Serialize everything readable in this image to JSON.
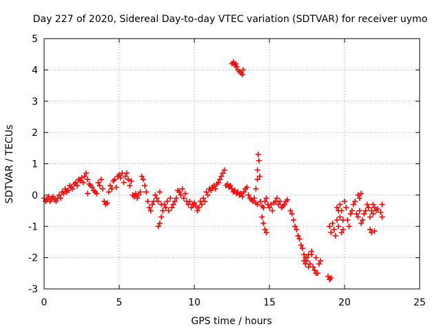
{
  "chart_data": {
    "type": "scatter",
    "title": "Day 227 of 2020, Sidereal Day-to-day VTEC variation (SDTVAR) for receiver uymo",
    "xlabel": "GPS time / hours",
    "ylabel": "SDTVAR / TECUs",
    "xlim": [
      0,
      25
    ],
    "ylim": [
      -3,
      5
    ],
    "xticks": [
      "0",
      "5",
      "10",
      "15",
      "20",
      "25"
    ],
    "yticks": [
      "-3",
      "-2",
      "-1",
      "0",
      "1",
      "2",
      "3",
      "4",
      "5"
    ],
    "grid": true,
    "marker": "+",
    "color": "#ff0000",
    "series": [
      {
        "name": "uymo",
        "points": [
          [
            0.0,
            -0.1
          ],
          [
            0.1,
            -0.2
          ],
          [
            0.2,
            -0.15
          ],
          [
            0.3,
            -0.05
          ],
          [
            0.4,
            -0.2
          ],
          [
            0.5,
            -0.1
          ],
          [
            0.6,
            -0.05
          ],
          [
            0.7,
            -0.15
          ],
          [
            0.8,
            -0.2
          ],
          [
            0.9,
            -0.1
          ],
          [
            1.0,
            0.0
          ],
          [
            1.1,
            -0.1
          ],
          [
            1.2,
            0.1
          ],
          [
            1.3,
            0.05
          ],
          [
            1.4,
            0.2
          ],
          [
            1.5,
            0.1
          ],
          [
            1.6,
            0.15
          ],
          [
            1.7,
            0.3
          ],
          [
            1.8,
            0.25
          ],
          [
            1.9,
            0.2
          ],
          [
            2.0,
            0.35
          ],
          [
            2.1,
            0.4
          ],
          [
            2.2,
            0.3
          ],
          [
            2.3,
            0.5
          ],
          [
            2.4,
            0.45
          ],
          [
            2.5,
            0.55
          ],
          [
            2.6,
            0.4
          ],
          [
            2.7,
            0.6
          ],
          [
            2.8,
            0.7
          ],
          [
            2.9,
            0.5
          ],
          [
            3.0,
            0.35
          ],
          [
            2.9,
            0.05
          ],
          [
            3.1,
            0.3
          ],
          [
            3.2,
            0.25
          ],
          [
            3.3,
            0.15
          ],
          [
            3.4,
            0.1
          ],
          [
            3.5,
            0.05
          ],
          [
            3.6,
            0.4
          ],
          [
            3.7,
            0.3
          ],
          [
            3.8,
            0.5
          ],
          [
            3.9,
            0.2
          ],
          [
            4.0,
            -0.2
          ],
          [
            4.1,
            -0.3
          ],
          [
            4.2,
            -0.25
          ],
          [
            4.3,
            0.1
          ],
          [
            4.4,
            0.3
          ],
          [
            4.5,
            0.2
          ],
          [
            4.6,
            0.45
          ],
          [
            4.7,
            0.5
          ],
          [
            4.8,
            0.25
          ],
          [
            4.9,
            0.6
          ],
          [
            5.0,
            0.65
          ],
          [
            5.1,
            0.55
          ],
          [
            5.2,
            0.7
          ],
          [
            5.3,
            0.4
          ],
          [
            5.4,
            0.6
          ],
          [
            5.5,
            0.7
          ],
          [
            5.6,
            0.5
          ],
          [
            5.7,
            0.3
          ],
          [
            5.8,
            0.45
          ],
          [
            5.9,
            0.0
          ],
          [
            6.0,
            -0.05
          ],
          [
            6.1,
            0.05
          ],
          [
            6.2,
            -0.1
          ],
          [
            6.3,
            0.0
          ],
          [
            6.4,
            0.1
          ],
          [
            6.5,
            0.6
          ],
          [
            6.6,
            0.5
          ],
          [
            6.7,
            0.3
          ],
          [
            6.8,
            0.1
          ],
          [
            6.9,
            -0.2
          ],
          [
            7.0,
            -0.4
          ],
          [
            7.1,
            -0.5
          ],
          [
            7.2,
            -0.3
          ],
          [
            7.3,
            -0.2
          ],
          [
            7.4,
            0.0
          ],
          [
            7.5,
            -0.1
          ],
          [
            7.6,
            -0.2
          ],
          [
            7.7,
            0.1
          ],
          [
            7.8,
            -0.3
          ],
          [
            7.6,
            -1.0
          ],
          [
            7.7,
            -0.9
          ],
          [
            7.8,
            -0.7
          ],
          [
            7.9,
            -0.5
          ],
          [
            8.0,
            -0.3
          ],
          [
            8.1,
            -0.4
          ],
          [
            8.2,
            -0.2
          ],
          [
            8.3,
            -0.5
          ],
          [
            8.4,
            -0.1
          ],
          [
            8.5,
            -0.4
          ],
          [
            8.6,
            -0.3
          ],
          [
            8.7,
            -0.2
          ],
          [
            8.8,
            -0.1
          ],
          [
            8.9,
            0.15
          ],
          [
            9.0,
            0.1
          ],
          [
            9.1,
            0.0
          ],
          [
            9.2,
            0.2
          ],
          [
            9.3,
            -0.1
          ],
          [
            9.4,
            0.05
          ],
          [
            9.5,
            -0.2
          ],
          [
            9.6,
            -0.3
          ],
          [
            9.7,
            -0.2
          ],
          [
            9.8,
            -0.4
          ],
          [
            9.9,
            -0.3
          ],
          [
            10.0,
            -0.25
          ],
          [
            10.1,
            -0.35
          ],
          [
            10.2,
            -0.5
          ],
          [
            10.3,
            -0.4
          ],
          [
            10.4,
            -0.2
          ],
          [
            10.5,
            -0.3
          ],
          [
            10.6,
            -0.1
          ],
          [
            10.7,
            -0.2
          ],
          [
            10.8,
            0.1
          ],
          [
            10.9,
            0.0
          ],
          [
            11.0,
            0.2
          ],
          [
            11.1,
            0.15
          ],
          [
            11.2,
            0.25
          ],
          [
            11.3,
            0.3
          ],
          [
            11.4,
            0.2
          ],
          [
            11.5,
            0.35
          ],
          [
            11.6,
            0.4
          ],
          [
            11.7,
            0.5
          ],
          [
            11.8,
            0.6
          ],
          [
            11.9,
            0.7
          ],
          [
            12.0,
            0.8
          ],
          [
            12.1,
            0.3
          ],
          [
            12.2,
            0.35
          ],
          [
            12.3,
            0.25
          ],
          [
            12.4,
            0.3
          ],
          [
            12.5,
            0.2
          ],
          [
            12.6,
            0.1
          ],
          [
            12.7,
            0.15
          ],
          [
            12.8,
            0.05
          ],
          [
            12.9,
            0.1
          ],
          [
            13.0,
            0.0
          ],
          [
            13.1,
            0.05
          ],
          [
            13.2,
            -0.05
          ],
          [
            13.3,
            0.1
          ],
          [
            13.4,
            0.2
          ],
          [
            13.5,
            0.25
          ],
          [
            13.6,
            0.0
          ],
          [
            13.7,
            -0.1
          ],
          [
            13.8,
            -0.15
          ],
          [
            13.9,
            -0.2
          ],
          [
            14.0,
            -0.1
          ],
          [
            14.1,
            -0.25
          ],
          [
            14.2,
            -0.3
          ],
          [
            14.1,
            0.2
          ],
          [
            14.2,
            0.5
          ],
          [
            14.2,
            0.8
          ],
          [
            14.3,
            1.1
          ],
          [
            14.25,
            1.3
          ],
          [
            14.35,
            0.6
          ],
          [
            14.4,
            -0.2
          ],
          [
            14.5,
            -0.35
          ],
          [
            14.6,
            -0.4
          ],
          [
            14.7,
            -0.2
          ],
          [
            14.8,
            -0.1
          ],
          [
            14.9,
            -0.3
          ],
          [
            15.0,
            -0.4
          ],
          [
            15.1,
            -0.3
          ],
          [
            15.2,
            -0.5
          ],
          [
            14.6,
            -0.9
          ],
          [
            14.7,
            -1.1
          ],
          [
            14.8,
            -1.2
          ],
          [
            14.5,
            -0.7
          ],
          [
            15.3,
            -0.25
          ],
          [
            15.4,
            -0.2
          ],
          [
            15.5,
            -0.1
          ],
          [
            15.6,
            -0.3
          ],
          [
            15.7,
            -0.2
          ],
          [
            15.8,
            -0.4
          ],
          [
            15.9,
            -0.35
          ],
          [
            16.0,
            -0.3
          ],
          [
            16.1,
            -0.2
          ],
          [
            16.2,
            -0.15
          ],
          [
            16.4,
            -0.5
          ],
          [
            16.5,
            -0.6
          ],
          [
            16.6,
            -0.8
          ],
          [
            16.7,
            -1.0
          ],
          [
            16.8,
            -1.1
          ],
          [
            16.9,
            -1.3
          ],
          [
            17.0,
            -1.4
          ],
          [
            17.1,
            -1.6
          ],
          [
            17.2,
            -1.7
          ],
          [
            17.3,
            -1.9
          ],
          [
            17.4,
            -2.0
          ],
          [
            17.5,
            -2.1
          ],
          [
            17.6,
            -2.3
          ],
          [
            17.3,
            -2.1
          ],
          [
            17.4,
            -2.2
          ],
          [
            17.5,
            -2.0
          ],
          [
            17.6,
            -1.9
          ],
          [
            17.7,
            -2.2
          ],
          [
            17.8,
            -1.9
          ],
          [
            17.9,
            -2.3
          ],
          [
            18.0,
            -2.4
          ],
          [
            18.1,
            -2.0
          ],
          [
            18.2,
            -2.5
          ],
          [
            18.3,
            -2.2
          ],
          [
            18.4,
            -2.1
          ],
          [
            18.1,
            -2.5
          ],
          [
            17.8,
            -1.8
          ],
          [
            18.9,
            -2.6
          ],
          [
            19.0,
            -2.7
          ],
          [
            19.1,
            -2.65
          ],
          [
            19.0,
            -1.0
          ],
          [
            19.1,
            -1.2
          ],
          [
            19.2,
            -0.9
          ],
          [
            19.3,
            -1.1
          ],
          [
            19.4,
            -1.3
          ],
          [
            19.5,
            -0.8
          ],
          [
            19.6,
            -1.0
          ],
          [
            19.7,
            -0.7
          ],
          [
            19.8,
            -0.5
          ],
          [
            19.9,
            -0.8
          ],
          [
            19.5,
            -0.4
          ],
          [
            19.6,
            -0.5
          ],
          [
            19.7,
            -0.3
          ],
          [
            19.8,
            -1.2
          ],
          [
            19.9,
            -1.1
          ],
          [
            20.0,
            -0.2
          ],
          [
            20.1,
            -0.4
          ],
          [
            20.2,
            -0.8
          ],
          [
            20.3,
            -1.0
          ],
          [
            20.4,
            -0.6
          ],
          [
            20.5,
            -0.5
          ],
          [
            20.6,
            -0.3
          ],
          [
            20.7,
            -0.2
          ],
          [
            20.8,
            -0.6
          ],
          [
            20.9,
            -0.7
          ],
          [
            21.0,
            -0.5
          ],
          [
            21.1,
            -0.9
          ],
          [
            20.9,
            0.0
          ],
          [
            21.0,
            -0.1
          ],
          [
            21.1,
            0.05
          ],
          [
            21.2,
            -0.8
          ],
          [
            21.3,
            -0.6
          ],
          [
            21.4,
            -0.5
          ],
          [
            21.5,
            -0.3
          ],
          [
            21.6,
            -0.4
          ],
          [
            21.7,
            -0.7
          ],
          [
            21.8,
            -0.5
          ],
          [
            21.9,
            -0.6
          ],
          [
            22.0,
            -0.4
          ],
          [
            22.1,
            -0.5
          ],
          [
            21.7,
            -1.1
          ],
          [
            21.8,
            -1.2
          ],
          [
            22.0,
            -1.15
          ],
          [
            21.9,
            -0.3
          ],
          [
            22.2,
            -0.45
          ],
          [
            22.4,
            -0.55
          ],
          [
            22.5,
            -0.7
          ],
          [
            22.5,
            -0.3
          ],
          [
            12.5,
            4.2
          ],
          [
            12.6,
            4.25
          ],
          [
            12.7,
            4.15
          ],
          [
            12.8,
            4.1
          ],
          [
            12.9,
            4.0
          ],
          [
            13.0,
            3.95
          ],
          [
            13.1,
            3.9
          ],
          [
            13.2,
            3.85
          ],
          [
            13.25,
            4.0
          ],
          [
            12.75,
            4.2
          ]
        ]
      }
    ]
  }
}
